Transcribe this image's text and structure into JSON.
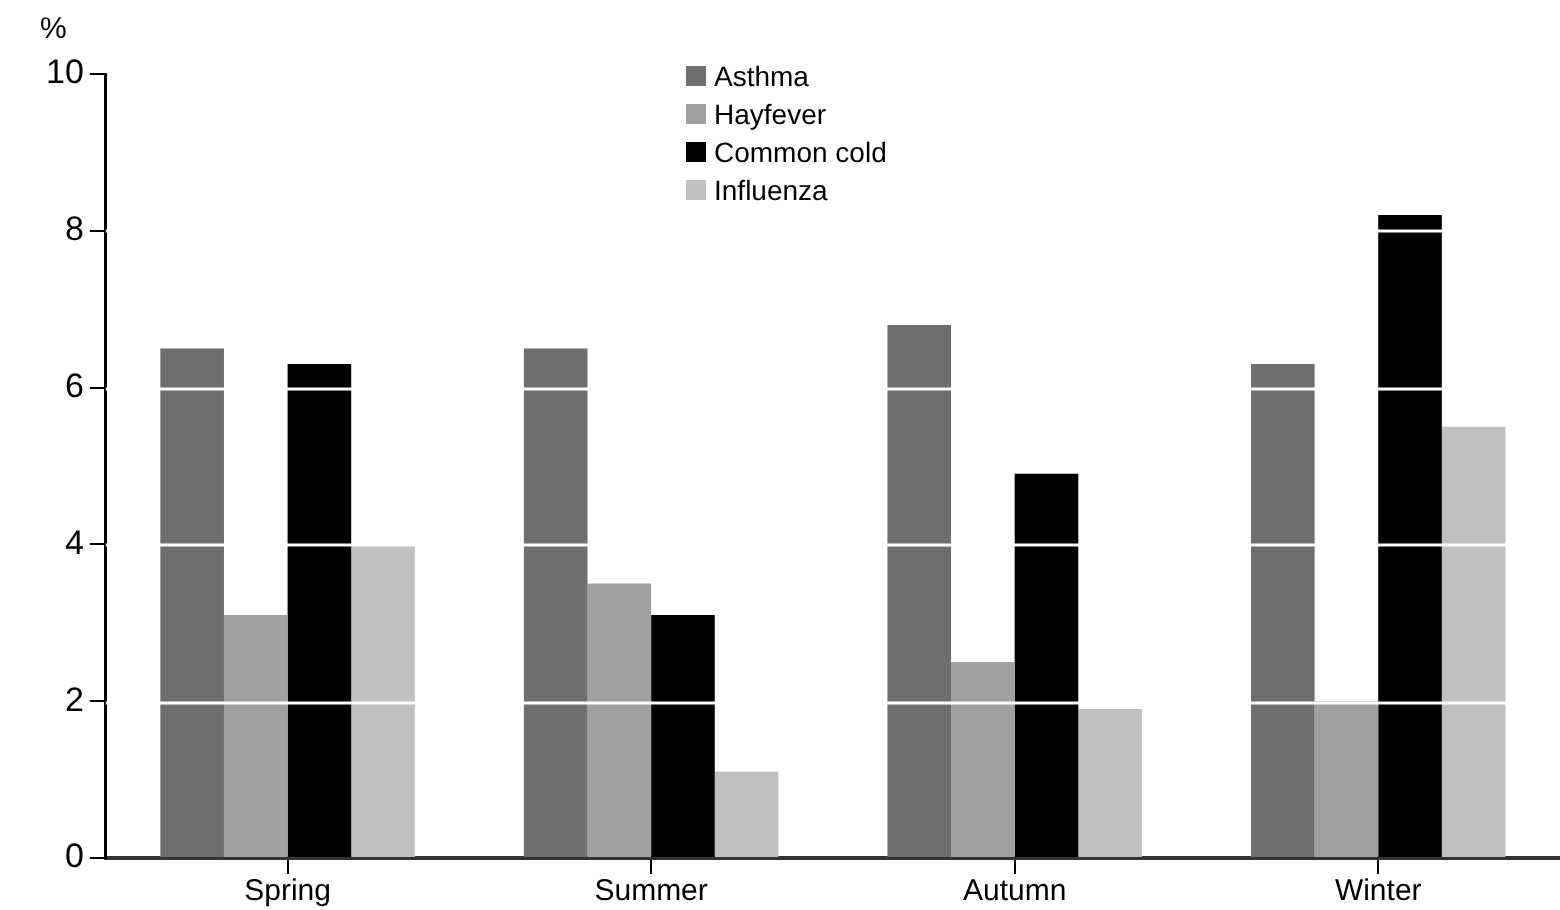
{
  "chart_data": {
    "type": "bar",
    "ylabel": "%",
    "categories": [
      "Spring",
      "Summer",
      "Autumn",
      "Winter"
    ],
    "series": [
      {
        "name": "Asthma",
        "color": "#6e6e6e",
        "values": [
          6.5,
          6.5,
          6.8,
          6.3
        ]
      },
      {
        "name": "Hayfever",
        "color": "#a0a0a0",
        "values": [
          3.1,
          3.5,
          2.5,
          2.0
        ]
      },
      {
        "name": "Common cold",
        "color": "#000000",
        "values": [
          6.3,
          3.1,
          4.9,
          8.2
        ]
      },
      {
        "name": "Influenza",
        "color": "#c0c0c0",
        "values": [
          4.0,
          1.1,
          1.9,
          5.5
        ]
      }
    ],
    "ylim": [
      0,
      10
    ],
    "yticks": [
      0,
      2,
      4,
      6,
      8,
      10
    ],
    "grid": "y",
    "legend": "top"
  }
}
